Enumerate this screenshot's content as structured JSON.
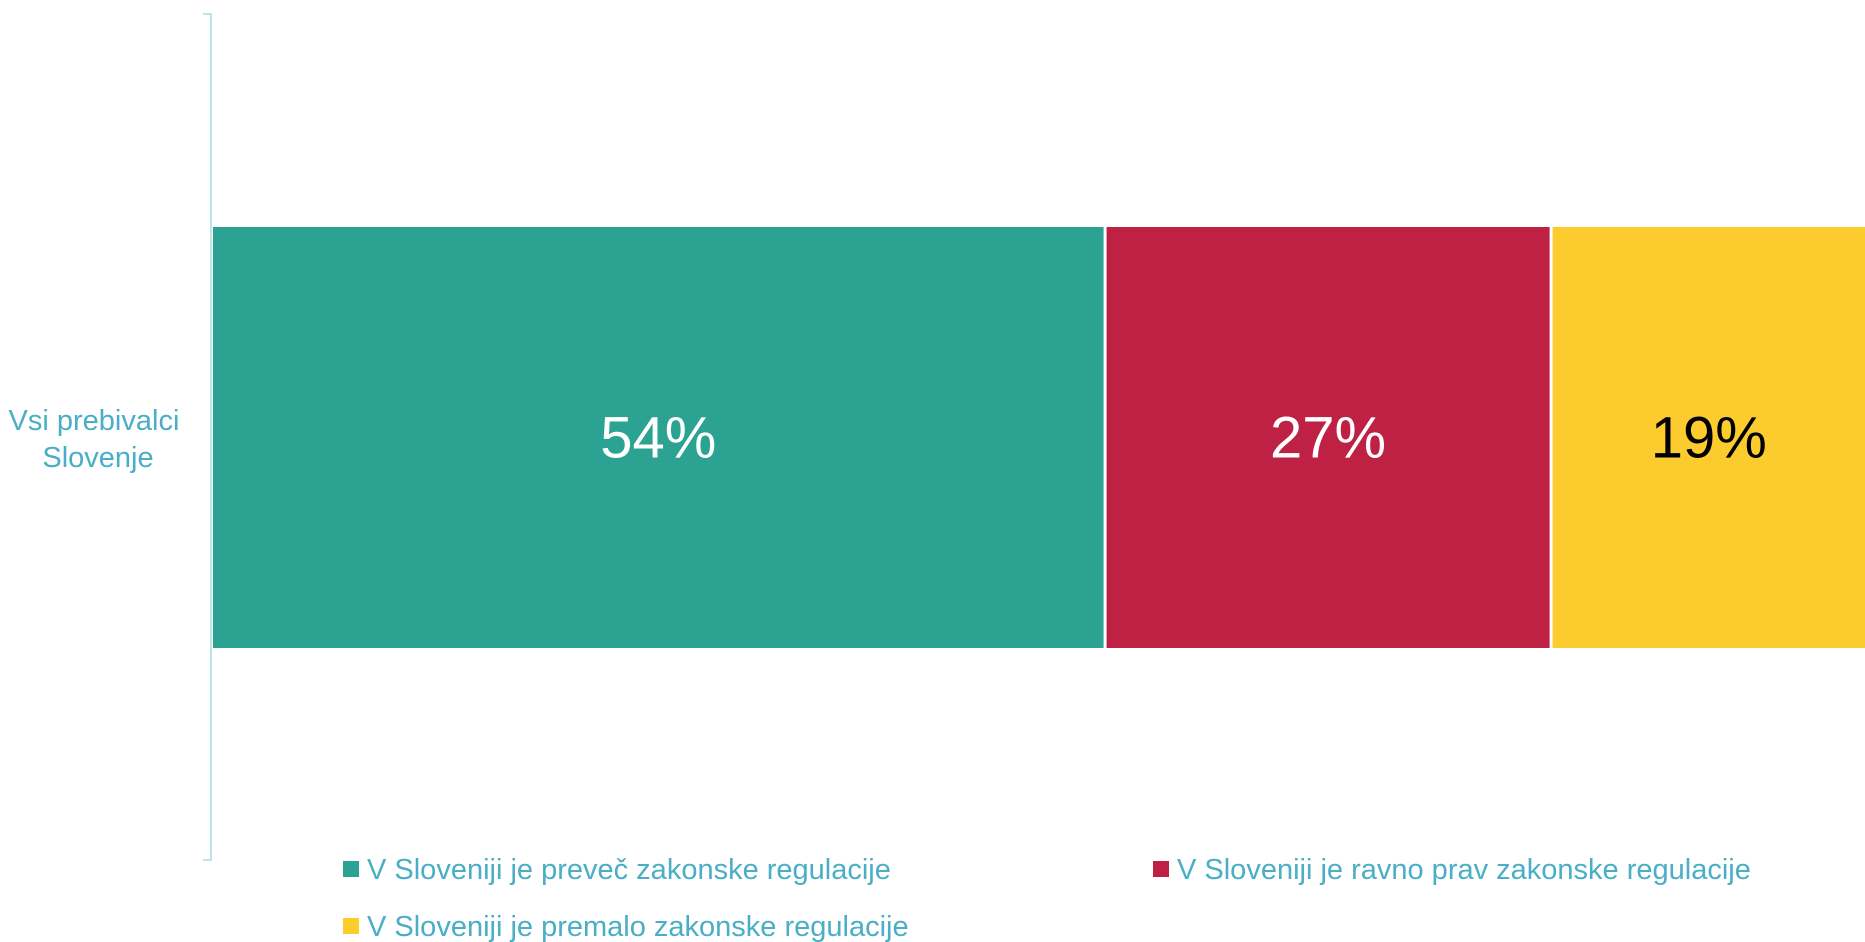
{
  "chart_data": {
    "type": "bar",
    "orientation": "horizontal",
    "stacked": true,
    "categories": [
      "Vsi prebivalci Slovenje"
    ],
    "category_lines": [
      "Vsi prebivalci",
      "Slovenje"
    ],
    "series": [
      {
        "name": "V Sloveniji je preveč zakonske regulacije",
        "values": [
          54
        ],
        "label": "54%",
        "color": "#2ca392",
        "label_color": "#ffffff"
      },
      {
        "name": "V Sloveniji je ravno prav zakonske regulacije",
        "values": [
          27
        ],
        "label": "27%",
        "color": "#be2144",
        "label_color": "#ffffff"
      },
      {
        "name": "V Sloveniji je premalo zakonske regulacije",
        "values": [
          19
        ],
        "label": "19%",
        "color": "#fccb2e",
        "label_color": "#000000"
      }
    ],
    "xlim": [
      0,
      100
    ],
    "grid": false,
    "legend_position": "bottom",
    "title": "",
    "xlabel": "",
    "ylabel": ""
  }
}
